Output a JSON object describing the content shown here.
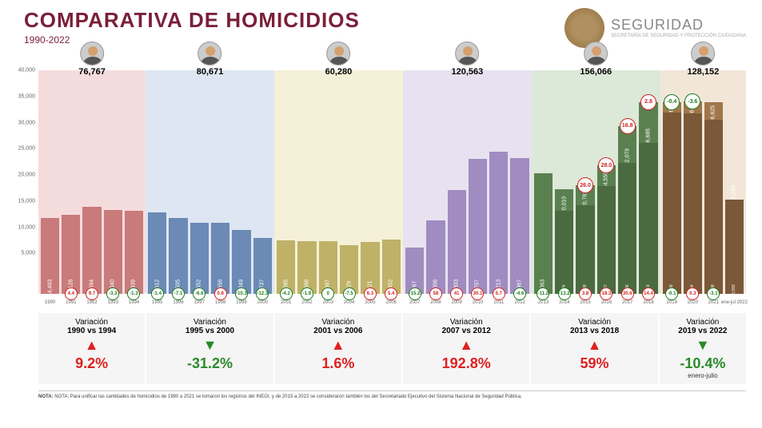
{
  "title": "COMPARATIVA DE HOMICIDIOS",
  "subtitle": "1990-2022",
  "brand": {
    "main": "SEGURIDAD",
    "sub": "SECRETARÍA DE SEGURIDAD\nY PROTECCIÓN CIUDADANA"
  },
  "title_color": "#7a1f3a",
  "y_axis": {
    "max": 40000,
    "ticks": [
      5000,
      10000,
      15000,
      20000,
      25000,
      30000,
      35000,
      40000
    ],
    "tick_labels": [
      "5,000",
      "10,000",
      "15,000",
      "20,000",
      "25,000",
      "30,000",
      "35,000",
      "40,000"
    ]
  },
  "periods": [
    {
      "id": "p1",
      "bg": "#f5dcdc",
      "bar_color": "#c97a7a",
      "total": "76,767",
      "bars": [
        {
          "year": "1990",
          "v": 14493,
          "lbl": "14,493",
          "var": null
        },
        {
          "year": "1991",
          "v": 15128,
          "lbl": "15,128",
          "var": {
            "t": "4.4",
            "c": "red"
          }
        },
        {
          "year": "1992",
          "v": 16594,
          "lbl": "16,594",
          "var": {
            "t": "9.7",
            "c": "red"
          }
        },
        {
          "year": "1993",
          "v": 16040,
          "lbl": "16,040",
          "var": {
            "t": "-3.3",
            "c": "green"
          }
        },
        {
          "year": "1994",
          "v": 15839,
          "lbl": "15,839",
          "var": {
            "t": "-1.3",
            "c": "green"
          }
        }
      ]
    },
    {
      "id": "p2",
      "bg": "#dde6f2",
      "bar_color": "#6b8ab5",
      "total": "80,671",
      "bars": [
        {
          "year": "1995",
          "v": 15612,
          "lbl": "15,612",
          "var": {
            "t": "-1.4",
            "c": "green"
          }
        },
        {
          "year": "1996",
          "v": 14505,
          "lbl": "14,505",
          "var": {
            "t": "-7.1",
            "c": "green"
          }
        },
        {
          "year": "1997",
          "v": 13552,
          "lbl": "13,552",
          "var": {
            "t": "-6.6",
            "c": "green"
          }
        },
        {
          "year": "1998",
          "v": 13656,
          "lbl": "13,656",
          "var": {
            "t": "0.8",
            "c": "red"
          }
        },
        {
          "year": "1999",
          "v": 12249,
          "lbl": "12,249",
          "var": {
            "t": "-10.3",
            "c": "green"
          }
        },
        {
          "year": "2000",
          "v": 10737,
          "lbl": "10,737",
          "var": {
            "t": "-12.3",
            "c": "green"
          }
        }
      ]
    },
    {
      "id": "p3",
      "bg": "#f5f0d8",
      "bar_color": "#bfb268",
      "total": "60,280",
      "bars": [
        {
          "year": "2001",
          "v": 10285,
          "lbl": "10,285",
          "var": {
            "t": "-4.2",
            "c": "green"
          }
        },
        {
          "year": "2002",
          "v": 10088,
          "lbl": "10,088",
          "var": {
            "t": "-1.9",
            "c": "green"
          }
        },
        {
          "year": "2003",
          "v": 10087,
          "lbl": "10,087",
          "var": {
            "t": "0",
            "c": "green"
          }
        },
        {
          "year": "2004",
          "v": 9329,
          "lbl": "9,329",
          "var": {
            "t": "-7.5",
            "c": "green"
          }
        },
        {
          "year": "2005",
          "v": 9921,
          "lbl": "9,921",
          "var": {
            "t": "6.3",
            "c": "red"
          }
        },
        {
          "year": "2006",
          "v": 10452,
          "lbl": "10,452",
          "var": {
            "t": "5.4",
            "c": "red"
          }
        }
      ]
    },
    {
      "id": "p4",
      "bg": "#e8e2f0",
      "bar_color": "#a08cc0",
      "total": "120,563",
      "bars": [
        {
          "year": "2007",
          "v": 8867,
          "lbl": "8,867",
          "var": {
            "t": "-15.2",
            "c": "green"
          }
        },
        {
          "year": "2008",
          "v": 14006,
          "lbl": "14,006",
          "var": {
            "t": "58",
            "c": "red"
          }
        },
        {
          "year": "2009",
          "v": 19803,
          "lbl": "19,803",
          "var": {
            "t": "41",
            "c": "red"
          }
        },
        {
          "year": "2010",
          "v": 25757,
          "lbl": "25,757",
          "var": {
            "t": "30.1",
            "c": "red"
          }
        },
        {
          "year": "2011",
          "v": 27213,
          "lbl": "27,213",
          "var": {
            "t": "5.7",
            "c": "red"
          }
        },
        {
          "year": "2012",
          "v": 25967,
          "lbl": "25,967",
          "var": {
            "t": "-4.6",
            "c": "green"
          }
        }
      ]
    },
    {
      "id": "p5",
      "bg": "#dce8d8",
      "bar_color": "#5a8050",
      "total": "156,066",
      "bars": [
        {
          "year": "2013",
          "v": 23063,
          "lbl": "23,063",
          "var": {
            "t": "-11.2",
            "c": "green"
          }
        },
        {
          "year": "2014",
          "v": 20010,
          "lbl": "20,010",
          "var": {
            "t": "-13.2",
            "c": "green"
          },
          "sub": {
            "v": 15824,
            "lbl": "15,824",
            "c": "#4a6a40"
          }
        },
        {
          "year": "2015",
          "v": 20762,
          "lbl": "20,762",
          "var": {
            "t": "3.8",
            "c": "red"
          },
          "sub": {
            "v": 16909,
            "lbl": "16,909",
            "c": "#4a6a40"
          },
          "big": {
            "t": "26.0",
            "c": "red"
          }
        },
        {
          "year": "2016",
          "v": 24559,
          "lbl": "24,559",
          "var": {
            "t": "18.3",
            "c": "red"
          },
          "sub": {
            "v": 20547,
            "lbl": "20,547",
            "c": "#4a6a40"
          },
          "big": {
            "t": "28.0",
            "c": "red"
          }
        },
        {
          "year": "2017",
          "v": 32079,
          "lbl": "32,079",
          "var": {
            "t": "30.6",
            "c": "red"
          },
          "sub": {
            "v": 25036,
            "lbl": "25,036",
            "c": "#4a6a40"
          },
          "big": {
            "t": "16.8",
            "c": "red"
          }
        },
        {
          "year": "2018",
          "v": 36685,
          "lbl": "36,685",
          "var": {
            "t": "14.4",
            "c": "red"
          },
          "sub": {
            "v": 28816,
            "lbl": "28,816",
            "c": "#4a6a40"
          },
          "big": {
            "t": "2.8",
            "c": "red"
          }
        }
      ]
    },
    {
      "id": "p6",
      "bg": "#f2e6d8",
      "bar_color": "#a0764a",
      "total": "128,152",
      "bars": [
        {
          "year": "2019",
          "v": 36661,
          "lbl": "36,661",
          "var": {
            "t": "-0.1",
            "c": "green"
          },
          "sub": {
            "v": 34689,
            "lbl": "34,689",
            "c": "#7a5838"
          },
          "big": {
            "t": "-0.4",
            "c": "green"
          }
        },
        {
          "year": "2020",
          "v": 36773,
          "lbl": "36,773",
          "var": {
            "t": "0.3",
            "c": "red"
          },
          "sub": {
            "v": 34554,
            "lbl": "34,554",
            "c": "#7a5838"
          },
          "big": {
            "t": "-3.6",
            "c": "green"
          }
        },
        {
          "year": "2021",
          "v": 36625,
          "lbl": "36,625",
          "var": {
            "t": "-3.1",
            "c": "green"
          },
          "sub": {
            "v": 33308,
            "lbl": "33,308",
            "c": "#7a5838"
          }
        },
        {
          "year": "ene-jul\n2022",
          "v": 18093,
          "lbl": "18,093",
          "sub": {
            "v": 18093,
            "lbl": "18,093",
            "c": "#7a5838"
          },
          "half": true
        }
      ]
    }
  ],
  "period_widths": [
    5,
    6,
    6,
    6,
    6,
    4
  ],
  "summary": [
    {
      "title": "Variación",
      "range": "1990 vs 1994",
      "dir": "up",
      "pct": "9.2%",
      "cls": "red"
    },
    {
      "title": "Variación",
      "range": "1995 vs 2000",
      "dir": "down",
      "pct": "-31.2%",
      "cls": "green"
    },
    {
      "title": "Variación",
      "range": "2001 vs 2006",
      "dir": "up",
      "pct": "1.6%",
      "cls": "red"
    },
    {
      "title": "Variación",
      "range": "2007 vs 2012",
      "dir": "up",
      "pct": "192.8%",
      "cls": "red"
    },
    {
      "title": "Variación",
      "range": "2013 vs 2018",
      "dir": "up",
      "pct": "59%",
      "cls": "red"
    },
    {
      "title": "Variación",
      "range": "2019 vs 2022",
      "dir": "down",
      "pct": "-10.4%",
      "cls": "green",
      "note": "enero-julio"
    }
  ],
  "footnote": "NOTA: Para unificar las cantidades de homicidios de 1990 a 2021 se tomaron los registros del INEGI, y de 2015 a 2022 se consideraron también los del Secretariado Ejecutivo del Sistema Nacional de Seguridad Pública."
}
